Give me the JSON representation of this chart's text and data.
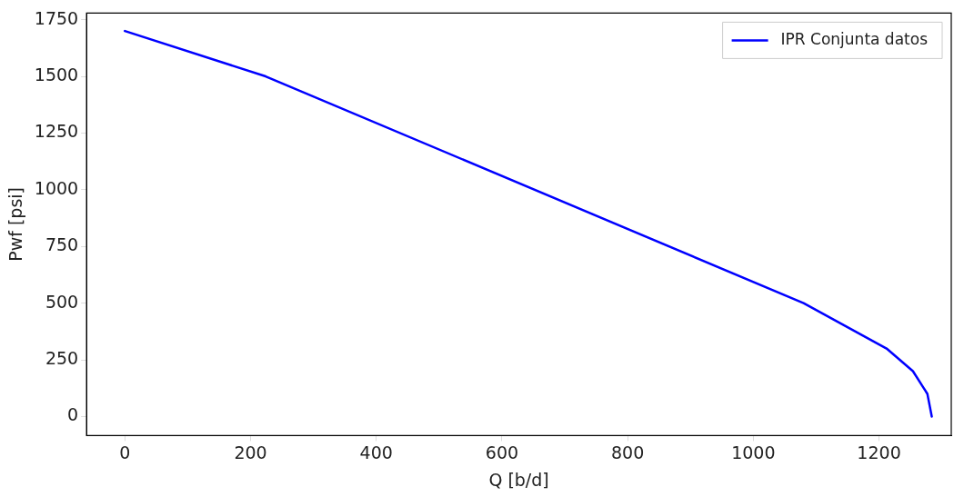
{
  "chart_data": {
    "type": "line",
    "xlabel": "Q [b/d]",
    "ylabel": "Pwf [psi]",
    "series": [
      {
        "name": "IPR Conjunta datos",
        "color": "#0000ff",
        "x": [
          0,
          224,
          1080,
          1212,
          1254,
          1277,
          1284
        ],
        "values": [
          1700,
          1500,
          500,
          300,
          200,
          100,
          0
        ]
      }
    ],
    "xlim": [
      -61,
      1315
    ],
    "ylim": [
      -84,
      1779
    ],
    "xticks": [
      0,
      200,
      400,
      600,
      800,
      1000,
      1200
    ],
    "yticks": [
      0,
      250,
      500,
      750,
      1000,
      1250,
      1500,
      1750
    ],
    "legend": "top right",
    "grid": false,
    "marker": "none",
    "line_style": "solid"
  }
}
